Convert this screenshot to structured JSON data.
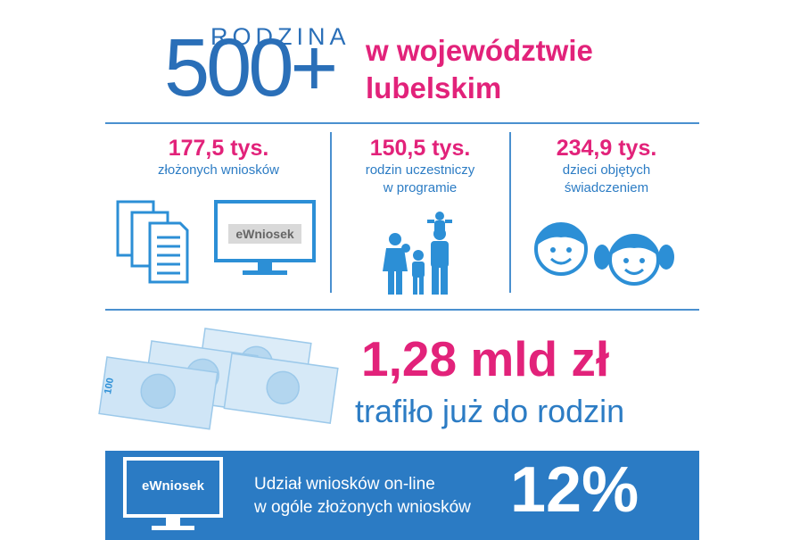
{
  "logo": {
    "word": "RODZINA",
    "number": "500+"
  },
  "title": {
    "line1": "w województwie",
    "line2": "lubelskim"
  },
  "stats": [
    {
      "value": "177,5 tys.",
      "label_line1": "złożonych wniosków",
      "label_line2": ""
    },
    {
      "value": "150,5 tys.",
      "label_line1": "rodzin uczestniczy",
      "label_line2": "w programie"
    },
    {
      "value": "234,9 tys.",
      "label_line1": "dzieci objętych",
      "label_line2": "świadczeniem"
    }
  ],
  "ewniosek_label": "eWniosek",
  "banknote_denomination": "100",
  "money": {
    "amount": "1,28 mld zł",
    "caption": "trafiło już do rodzin"
  },
  "footer": {
    "monitor_label": "eWniosek",
    "text_line1": "Udział wniosków on-line",
    "text_line2": "w ogóle złożonych wniosków",
    "percent": "12%"
  },
  "colors": {
    "pink": "#e2227a",
    "blue": "#2c7cc4",
    "footer_bg": "#2b7bc4"
  },
  "icons": [
    "documents-icon",
    "monitor-icon",
    "family-icon",
    "boy-face-icon",
    "girl-face-icon",
    "banknotes-icon"
  ]
}
